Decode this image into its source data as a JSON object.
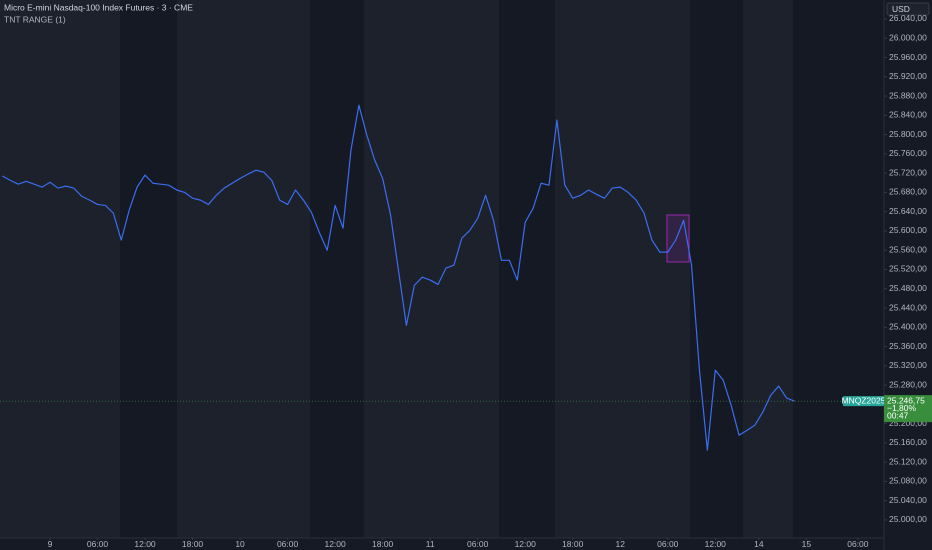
{
  "chart_data": {
    "type": "line",
    "title": "Micro E-mini Nasdaq-100 Index Futures · 3 · CME",
    "indicator": "TNT RANGE (1)",
    "currency": "USD",
    "symbol": "MNQZ2025",
    "last_price": 25246.75,
    "last_price_label": "25.246,75",
    "change_label": "−1,80%",
    "countdown": "00:47",
    "x": [
      -6,
      -5,
      -4,
      -3,
      -2,
      -1,
      0,
      1,
      2,
      3,
      4,
      5,
      6,
      7,
      8,
      9,
      10,
      11,
      12,
      13,
      14,
      15,
      16,
      17,
      18,
      19,
      20,
      21,
      22,
      23,
      24,
      25,
      26,
      27,
      28,
      29,
      30,
      31,
      32,
      33,
      34,
      35,
      36,
      37,
      38,
      39,
      40,
      41,
      42,
      43,
      44,
      45,
      46,
      47,
      48,
      49,
      50,
      51,
      52,
      53,
      54,
      55,
      56,
      57,
      58,
      59,
      60,
      61,
      62,
      63,
      64,
      65,
      66,
      67,
      68,
      69,
      70,
      71,
      72,
      73,
      74,
      75,
      76,
      77,
      78,
      79,
      80,
      81,
      82,
      83,
      84,
      85,
      86,
      87,
      88,
      89,
      90,
      91,
      92,
      93,
      94
    ],
    "series": [
      {
        "color": "#3a6df0",
        "values": [
          25714,
          25705,
          25697,
          25703,
          25697,
          25691,
          25701,
          25689,
          25693,
          25689,
          25672,
          25664,
          25655,
          25653,
          25637,
          25581,
          25643,
          25691,
          25716,
          25699,
          25697,
          25695,
          25685,
          25680,
          25668,
          25664,
          25655,
          25674,
          25689,
          25699,
          25709,
          25718,
          25726,
          25722,
          25705,
          25664,
          25655,
          25685,
          25664,
          25639,
          25597,
          25560,
          25653,
          25606,
          25768,
          25861,
          25799,
          25747,
          25709,
          25633,
          25518,
          25404,
          25487,
          25504,
          25498,
          25489,
          25523,
          25529,
          25585,
          25601,
          25626,
          25674,
          25622,
          25539,
          25539,
          25498,
          25618,
          25647,
          25699,
          25695,
          25830,
          25695,
          25668,
          25674,
          25685,
          25676,
          25668,
          25689,
          25691,
          25680,
          25664,
          25637,
          25581,
          25556,
          25556,
          25581,
          25622,
          25529,
          25311,
          25145,
          25311,
          25290,
          25238,
          25176,
          25186,
          25197,
          25224,
          25259,
          25278,
          25253,
          25246.75
        ]
      }
    ],
    "xlim": [
      -6.31,
      105.3
    ],
    "ylim": [
      24962.6,
      26079.4
    ],
    "grid": false,
    "xticks": [
      {
        "value": 0,
        "label": "9"
      },
      {
        "value": 6,
        "label": "06:00"
      },
      {
        "value": 12,
        "label": "12:00"
      },
      {
        "value": 18,
        "label": "18:00"
      },
      {
        "value": 24,
        "label": "10"
      },
      {
        "value": 30,
        "label": "06:00"
      },
      {
        "value": 36,
        "label": "12:00"
      },
      {
        "value": 42,
        "label": "18:00"
      },
      {
        "value": 48,
        "label": "11"
      },
      {
        "value": 54,
        "label": "06:00"
      },
      {
        "value": 60,
        "label": "12:00"
      },
      {
        "value": 66,
        "label": "18:00"
      },
      {
        "value": 72,
        "label": "12"
      },
      {
        "value": 78,
        "label": "06:00"
      },
      {
        "value": 84,
        "label": "12:00"
      },
      {
        "value": 89.5,
        "label": "14"
      },
      {
        "value": 95.5,
        "label": "15"
      },
      {
        "value": 102,
        "label": "06:00"
      }
    ],
    "yticks": [
      {
        "value": 25000,
        "label": "25.000,00"
      },
      {
        "value": 25040,
        "label": "25.040,00"
      },
      {
        "value": 25080,
        "label": "25.080,00"
      },
      {
        "value": 25120,
        "label": "25.120,00"
      },
      {
        "value": 25160,
        "label": "25.160,00"
      },
      {
        "value": 25200,
        "label": "25.200,00"
      },
      {
        "value": 25240,
        "label": "25.240,00"
      },
      {
        "value": 25280,
        "label": "25.280,00"
      },
      {
        "value": 25320,
        "label": "25.320,00"
      },
      {
        "value": 25360,
        "label": "25.360,00"
      },
      {
        "value": 25400,
        "label": "25.400,00"
      },
      {
        "value": 25440,
        "label": "25.440,00"
      },
      {
        "value": 25480,
        "label": "25.480,00"
      },
      {
        "value": 25520,
        "label": "25.520,00"
      },
      {
        "value": 25560,
        "label": "25.560,00"
      },
      {
        "value": 25600,
        "label": "25.600,00"
      },
      {
        "value": 25640,
        "label": "25.640,00"
      },
      {
        "value": 25680,
        "label": "25.680,00"
      },
      {
        "value": 25720,
        "label": "25.720,00"
      },
      {
        "value": 25760,
        "label": "25.760,00"
      },
      {
        "value": 25800,
        "label": "25.800,00"
      },
      {
        "value": 25840,
        "label": "25.840,00"
      },
      {
        "value": 25880,
        "label": "25.880,00"
      },
      {
        "value": 25920,
        "label": "25.920,00"
      },
      {
        "value": 25960,
        "label": "25.960,00"
      },
      {
        "value": 26000,
        "label": "26.000,00"
      },
      {
        "value": 26040,
        "label": "26.040,00"
      }
    ]
  }
}
